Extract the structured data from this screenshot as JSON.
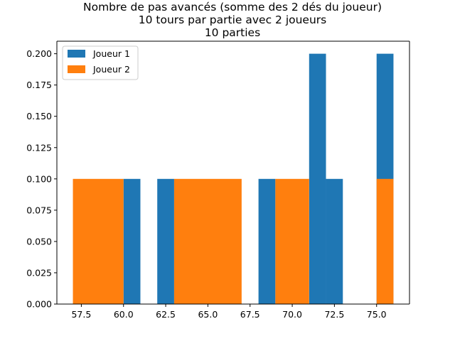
{
  "chart_data": {
    "type": "bar",
    "title_lines": [
      "Nombre de pas avancés (somme des 2 dés du joueur)",
      "10 tours par partie avec 2 joueurs",
      "10 parties"
    ],
    "xlabel": "",
    "ylabel": "",
    "xlim": [
      56.05,
      76.95
    ],
    "ylim": [
      0,
      0.21
    ],
    "xticks": [
      57.5,
      60.0,
      62.5,
      65.0,
      67.5,
      70.0,
      72.5,
      75.0
    ],
    "xtick_labels": [
      "57.5",
      "60.0",
      "62.5",
      "65.0",
      "67.5",
      "70.0",
      "72.5",
      "75.0"
    ],
    "yticks": [
      0,
      0.025,
      0.05,
      0.075,
      0.1,
      0.125,
      0.15,
      0.175,
      0.2
    ],
    "ytick_labels": [
      "0.000",
      "0.025",
      "0.050",
      "0.075",
      "0.100",
      "0.125",
      "0.150",
      "0.175",
      "0.200"
    ],
    "grid": false,
    "legend_position": "top-left",
    "series": [
      {
        "name": "Joueur 1",
        "color": "#1f77b4",
        "bins": [
          {
            "x0": 60,
            "x1": 61,
            "value": 0.1
          },
          {
            "x0": 62,
            "x1": 63,
            "value": 0.1
          },
          {
            "x0": 68,
            "x1": 69,
            "value": 0.1
          },
          {
            "x0": 71,
            "x1": 72,
            "value": 0.2
          },
          {
            "x0": 72,
            "x1": 73,
            "value": 0.1
          },
          {
            "x0": 75,
            "x1": 76,
            "value": 0.2
          }
        ]
      },
      {
        "name": "Joueur 2",
        "color": "#ff7f0e",
        "bins": [
          {
            "x0": 57,
            "x1": 60,
            "value": 0.1
          },
          {
            "x0": 63,
            "x1": 67,
            "value": 0.1
          },
          {
            "x0": 69,
            "x1": 71,
            "value": 0.1
          },
          {
            "x0": 75,
            "x1": 76,
            "value": 0.1
          }
        ]
      }
    ]
  }
}
